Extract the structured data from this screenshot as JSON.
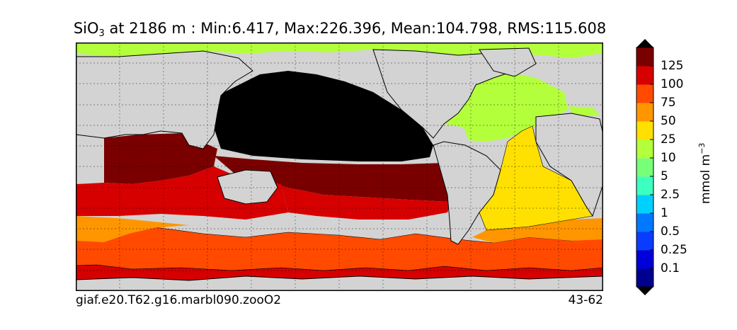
{
  "title": {
    "prefix": "SiO",
    "subscript": "3",
    "text": " at 2186 m : Min:6.417, Max:226.396, Mean:104.798, RMS:115.608"
  },
  "footer": {
    "run_name": "giaf.e20.T62.g16.marbl090.zooO2",
    "years": "43-62"
  },
  "colorbar": {
    "units_base": "mmol m",
    "units_exp": "−3",
    "labels": [
      "0.1",
      "0.25",
      "0.5",
      "1",
      "2.5",
      "5",
      "10",
      "25",
      "50",
      "75",
      "100",
      "125"
    ],
    "colors": [
      "#00008f",
      "#0000d8",
      "#0a3cff",
      "#0078ff",
      "#00d0ff",
      "#3cffc0",
      "#78ff78",
      "#b4ff3c",
      "#ffe000",
      "#ff9600",
      "#ff4a00",
      "#d60000",
      "#7a0000"
    ],
    "extend": "both"
  },
  "chart_data": {
    "type": "heatmap",
    "variable": "SiO3",
    "depth_m": 2186,
    "stats": {
      "min": 6.417,
      "max": 226.396,
      "mean": 104.798,
      "rms": 115.608
    },
    "colorbar_levels": [
      0.1,
      0.25,
      0.5,
      1,
      2.5,
      5,
      10,
      25,
      50,
      75,
      100,
      125
    ],
    "units": "mmol m^-3",
    "grid": true,
    "land_color": "#d3d3d3",
    "regions": [
      {
        "region": "North Pacific",
        "level": ">125"
      },
      {
        "region": "Equatorial & South Pacific",
        "level": "100-125"
      },
      {
        "region": "Indian Ocean",
        "level": "100-125"
      },
      {
        "region": "Southern Ocean",
        "level": "75-125"
      },
      {
        "region": "North Atlantic",
        "level": "10-25"
      },
      {
        "region": "South Atlantic",
        "level": "25-50"
      },
      {
        "region": "Arctic",
        "level": "10-25"
      }
    ]
  }
}
